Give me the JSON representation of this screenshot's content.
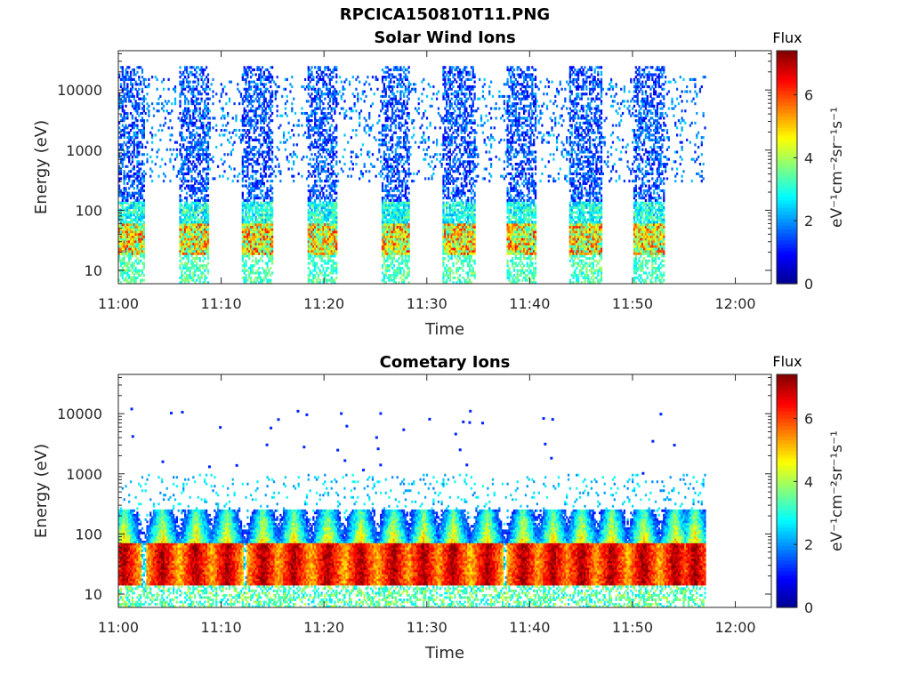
{
  "figure_title": "RPCICA150810T11.PNG",
  "colors": {
    "colormap": [
      "#00008f",
      "#0000ff",
      "#0080ff",
      "#00ffff",
      "#80ff80",
      "#ffff00",
      "#ff8000",
      "#ff0000",
      "#800000"
    ],
    "axis": "#262626"
  },
  "chart_data": [
    {
      "type": "heatmap",
      "title": "Solar Wind Ions",
      "xlabel": "Time",
      "ylabel": "Energy (eV)",
      "x_ticks": [
        "11:00",
        "11:10",
        "11:20",
        "11:30",
        "11:40",
        "11:50",
        "12:00"
      ],
      "x_range_minutes": [
        0,
        63.5
      ],
      "y_scale": "log",
      "y_ticks": [
        10,
        100,
        1000,
        10000
      ],
      "y_tick_labels": [
        "10",
        "100",
        "1000",
        "10000"
      ],
      "y_range": [
        6,
        45000
      ],
      "data_extent_minutes": [
        0,
        57
      ],
      "scan_bursts_minutes": [
        [
          0,
          2.5
        ],
        [
          5.8,
          8.7
        ],
        [
          12,
          15
        ],
        [
          18.3,
          21.2
        ],
        [
          25.5,
          28.3
        ],
        [
          31.5,
          34.6
        ],
        [
          37.6,
          40.5
        ],
        [
          43.8,
          47
        ],
        [
          50,
          53
        ]
      ],
      "features": {
        "sw_core_energy_eV": [
          20,
          60
        ],
        "sw_core_peak_flux": 6,
        "high_energy_sparse_flux": [
          0.8,
          2.5
        ]
      },
      "grid": false,
      "colorbar": {
        "label": "Flux",
        "units": "eV⁻¹cm⁻²sr⁻¹s⁻¹",
        "range": [
          0,
          7.4
        ],
        "ticks": [
          "0",
          "2",
          "4",
          "6"
        ]
      }
    },
    {
      "type": "heatmap",
      "title": "Cometary Ions",
      "xlabel": "Time",
      "ylabel": "Energy (eV)",
      "x_ticks": [
        "11:00",
        "11:10",
        "11:20",
        "11:30",
        "11:40",
        "11:50",
        "12:00"
      ],
      "x_range_minutes": [
        0,
        63.5
      ],
      "y_scale": "log",
      "y_ticks": [
        10,
        100,
        1000,
        10000
      ],
      "y_tick_labels": [
        "10",
        "100",
        "1000",
        "10000"
      ],
      "y_range": [
        6,
        45000
      ],
      "data_extent_minutes": [
        0,
        57
      ],
      "bursts_minutes": [
        0.5,
        4.2,
        7.5,
        10.5,
        14,
        17,
        20.3,
        23.5,
        26.7,
        29.6,
        32.5,
        35.8,
        39.3,
        42.2,
        45,
        47.9,
        51,
        54.1,
        56
      ],
      "features": {
        "core_energy_eV": [
          15,
          70
        ],
        "core_peak_flux": 7.2,
        "tail_max_energy_eV": 800,
        "stray_counts_energy_eV": [
          1000,
          12000
        ]
      },
      "grid": false,
      "colorbar": {
        "label": "Flux",
        "units": "eV⁻¹cm⁻²sr⁻¹s⁻¹",
        "range": [
          0,
          7.4
        ],
        "ticks": [
          "0",
          "2",
          "4",
          "6"
        ]
      }
    }
  ]
}
